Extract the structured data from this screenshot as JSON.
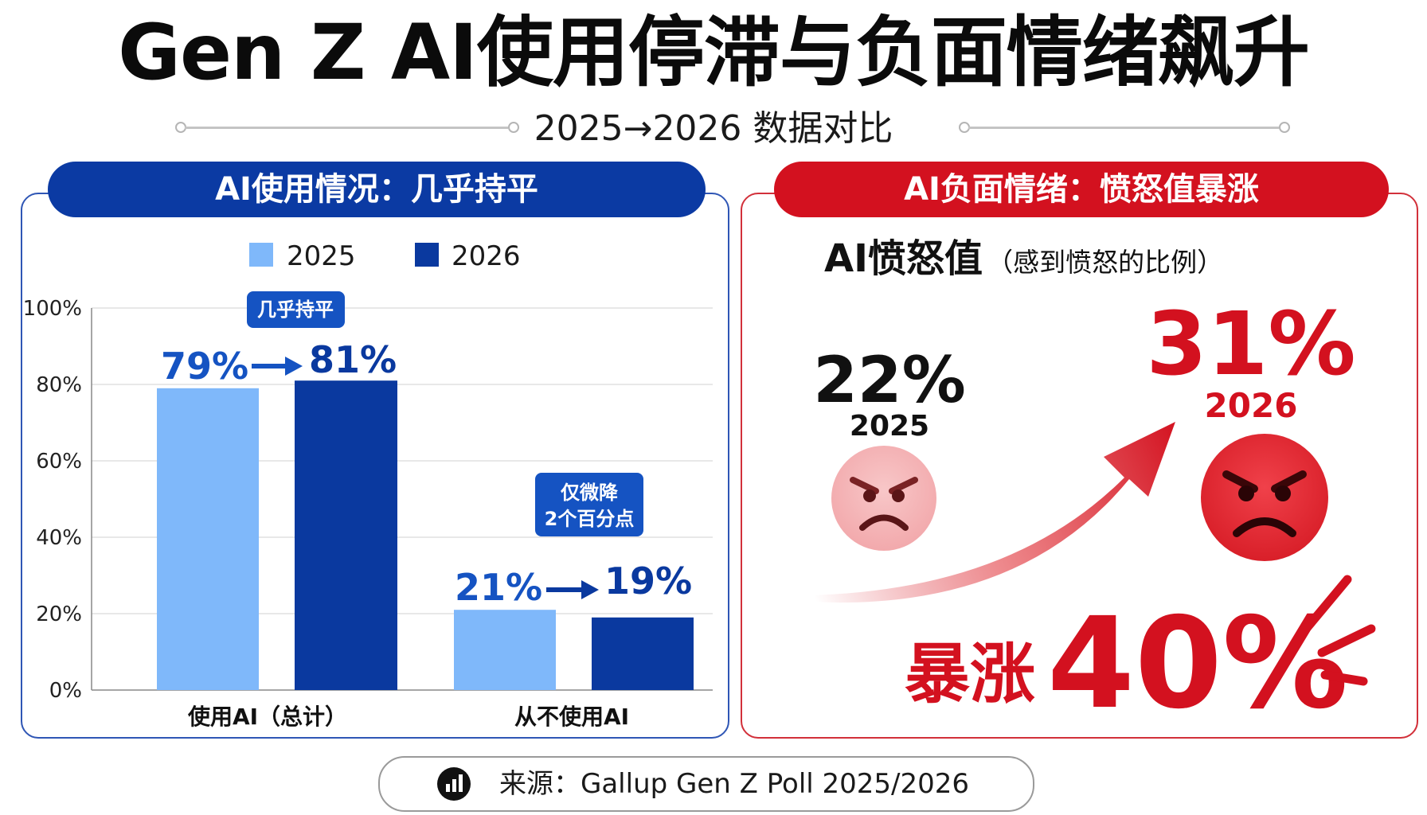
{
  "title": "Gen Z AI使用停滞与负面情绪飙升",
  "subtitle": "2025→2026 数据对比",
  "colors": {
    "y2025": "#7fb8fa",
    "y2026": "#0a399f",
    "blue_text": "#1553c2",
    "red": "#d3111f",
    "face_2025": "#f4b4b6",
    "face_2026": "#e52a32"
  },
  "left_panel": {
    "banner": "AI使用情况：几乎持平",
    "callout_flat": "几乎持平",
    "callout_drop_line1": "仅微降",
    "callout_drop_line2": "2个百分点"
  },
  "right_panel": {
    "banner": "AI负面情绪：愤怒值暴涨",
    "heading_main": "AI愤怒值",
    "heading_sub": "（感到愤怒的比例）",
    "value_2025": "22%",
    "label_2025": "2025",
    "value_2026": "31%",
    "label_2026": "2026",
    "surge_word": "暴涨",
    "surge_value": "40%",
    "face_2025_icon": "angry-face-light-icon",
    "face_2026_icon": "angry-face-red-icon"
  },
  "source": {
    "icon": "bar-chart-icon",
    "text": "来源：Gallup Gen Z Poll 2025/2026"
  },
  "chart_data": [
    {
      "type": "bar",
      "categories": [
        "使用AI（总计）",
        "从不使用AI"
      ],
      "series": [
        {
          "name": "2025",
          "values": [
            79,
            21
          ]
        },
        {
          "name": "2026",
          "values": [
            81,
            19
          ]
        }
      ],
      "value_labels": [
        [
          "79%",
          "81%"
        ],
        [
          "21%",
          "19%"
        ]
      ],
      "ylim": [
        0,
        100
      ],
      "yticks": [
        "0%",
        "20%",
        "40%",
        "60%",
        "80%",
        "100%"
      ],
      "grid": true,
      "legend": "top"
    },
    {
      "type": "bar",
      "categories": [
        "2025",
        "2026"
      ],
      "values": [
        22,
        31
      ],
      "unit": "%"
    }
  ]
}
